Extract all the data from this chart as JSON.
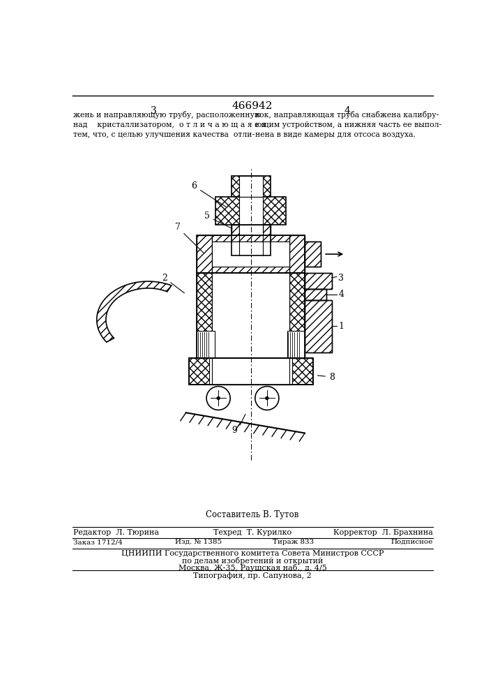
{
  "patent_number": "466942",
  "page_left": "3",
  "page_right": "4",
  "text_left": "жень и направляющую трубу, расположенную\nнад    кристаллизатором,  о т л и ч а ю щ а я с я\nтем, что, с целью улучшения качества  отли-",
  "text_right": "вок, направляющая труба снабжена калибру-\nющим устройством, а нижняя часть ее выпол-\nнена в виде камеры для отсоса воздуха.",
  "composer": "Составитель В. Тутов",
  "editor": "Редактор  Л. Тюрина",
  "techred": "Техред  Т. Курилко",
  "corrector": "Корректор  Л. Брахнина",
  "order": "Заказ 1712/4",
  "edition": "Изд. № 1385",
  "circulation": "Тираж 833",
  "subscription": "Подписное",
  "org_line1": "ЦНИИПИ Государственного комитета Совета Министров СССР",
  "org_line2": "по делам изобретений и открытий",
  "org_line3": "Москва, Ж-35, Раушская наб., д. 4/5",
  "print_line": "Типография, пр. Сапунова, 2",
  "bg_color": "#ffffff"
}
